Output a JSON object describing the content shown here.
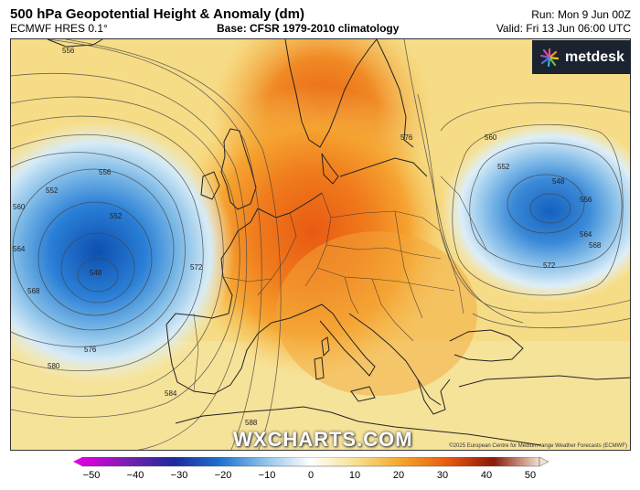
{
  "header": {
    "title": "500 hPa Geopotential Height & Anomaly (dm)",
    "model": "ECMWF HRES 0.1°",
    "base": "Base: CFSR 1979-2010 climatology",
    "run": "Run: Mon 9 Jun 00Z",
    "valid": "Valid: Fri 13 Jun 06:00 UTC"
  },
  "logo": {
    "text": "metdesk",
    "icon": "metdesk-star-icon"
  },
  "watermark": "WXCHARTS.COM",
  "copyright": "©2025 European Centre for Medium-range Weather Forecasts (ECMWF)",
  "contour_labels": {
    "w_548": "548",
    "w_552a": "552",
    "w_552b": "552",
    "w_556a": "556",
    "w_556b": "556",
    "w_560": "560",
    "w_564": "564",
    "w_568": "568",
    "w_572": "572",
    "w_576": "576",
    "w_580": "580",
    "w_584": "584",
    "e_548": "548",
    "e_552": "552",
    "e_556": "556",
    "e_560": "560",
    "e_564": "564",
    "e_568": "568",
    "e_572": "572",
    "n_576": "576",
    "s_588": "588"
  },
  "colorbar": {
    "labels": [
      "−50",
      "−40",
      "−30",
      "−20",
      "−10",
      "0",
      "10",
      "20",
      "30",
      "40",
      "50"
    ],
    "colors": [
      "#e000e0",
      "#7a1fb0",
      "#1a2a9a",
      "#1f6fd0",
      "#8ec4ea",
      "#ffffff",
      "#f7e08a",
      "#f4a42a",
      "#e85a10",
      "#8a1a08",
      "#f0e0d0"
    ]
  }
}
